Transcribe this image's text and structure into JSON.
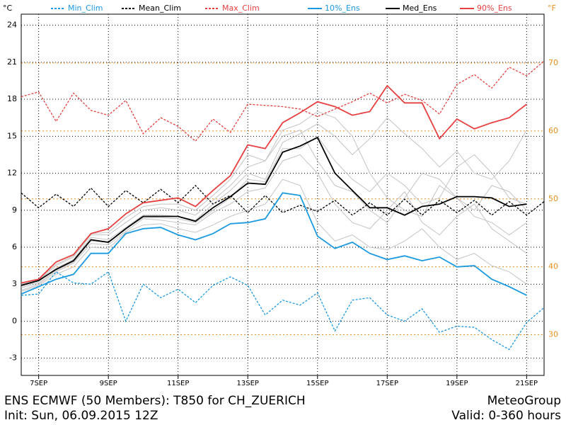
{
  "chart_data": {
    "type": "line",
    "left_unit": "°C",
    "right_unit": "°F",
    "x": [
      0,
      12,
      24,
      36,
      48,
      60,
      72,
      84,
      96,
      108,
      120,
      132,
      144,
      156,
      168,
      180,
      192,
      204,
      216,
      228,
      240,
      252,
      264,
      276,
      288,
      300,
      312,
      324,
      336,
      348,
      360
    ],
    "xlim": [
      0,
      360
    ],
    "xticks": [
      {
        "value": 12,
        "label": "7SEP"
      },
      {
        "value": 60,
        "label": "9SEP"
      },
      {
        "value": 108,
        "label": "11SEP"
      },
      {
        "value": 156,
        "label": "13SEP"
      },
      {
        "value": 204,
        "label": "15SEP"
      },
      {
        "value": 252,
        "label": "17SEP"
      },
      {
        "value": 300,
        "label": "19SEP"
      },
      {
        "value": 348,
        "label": "21SEP"
      }
    ],
    "ylim": [
      -4.4,
      24.9
    ],
    "yticks": [
      -3,
      0,
      3,
      6,
      9,
      12,
      15,
      18,
      21,
      24
    ],
    "y2lim": [
      24,
      77.2
    ],
    "y2ticks": [
      30,
      40,
      50,
      60,
      70
    ],
    "y2color": "#e8901c",
    "grid": true,
    "member_color": "#c4c4c4",
    "members": [
      {
        "values": [
          2.8,
          3.2,
          4.3,
          5.0,
          6.8,
          6.6,
          7.6,
          8.6,
          8.6,
          8.5,
          8.2,
          9.5,
          10.6,
          12.0,
          11.5,
          14.5,
          15.2,
          16.0,
          15.0,
          13.5,
          14.8,
          16.5,
          15.2,
          14.0,
          12.5,
          13.8,
          12.0,
          11.5,
          13.0,
          15.5,
          null
        ]
      },
      {
        "values": [
          2.5,
          3.0,
          4.0,
          4.7,
          6.3,
          6.2,
          7.3,
          8.3,
          8.2,
          8.0,
          7.8,
          8.8,
          9.5,
          10.5,
          10.8,
          13.0,
          13.5,
          12.0,
          9.5,
          8.0,
          7.5,
          9.0,
          10.5,
          8.0,
          7.0,
          8.5,
          9.5,
          7.5,
          6.5,
          5.5,
          null
        ]
      },
      {
        "values": [
          3.0,
          3.3,
          4.5,
          5.2,
          7.0,
          7.0,
          8.0,
          9.0,
          9.2,
          9.0,
          8.6,
          9.8,
          11.0,
          12.5,
          13.0,
          15.0,
          15.5,
          13.0,
          11.0,
          10.5,
          9.0,
          8.0,
          10.0,
          12.0,
          11.5,
          10.0,
          9.0,
          11.0,
          10.5,
          9.0,
          null
        ]
      },
      {
        "values": [
          2.4,
          2.9,
          3.8,
          4.4,
          6.0,
          5.9,
          7.2,
          7.8,
          7.9,
          7.5,
          7.2,
          7.8,
          8.5,
          9.0,
          9.5,
          11.5,
          11.0,
          8.0,
          6.5,
          7.0,
          6.0,
          5.8,
          6.5,
          7.5,
          6.0,
          5.0,
          5.5,
          4.5,
          4.0,
          3.0,
          null
        ]
      },
      {
        "values": [
          2.7,
          3.1,
          4.1,
          4.8,
          6.5,
          6.4,
          7.5,
          8.4,
          8.4,
          8.3,
          8.0,
          9.0,
          10.0,
          11.5,
          11.3,
          14.0,
          14.0,
          15.0,
          13.0,
          11.5,
          10.5,
          12.0,
          11.0,
          9.5,
          10.0,
          12.5,
          13.5,
          12.0,
          10.0,
          9.5,
          null
        ]
      },
      {
        "values": [
          2.9,
          3.4,
          4.6,
          5.3,
          7.1,
          7.2,
          8.4,
          9.3,
          9.5,
          9.5,
          9.0,
          10.2,
          11.5,
          13.5,
          13.0,
          15.5,
          16.0,
          17.0,
          16.5,
          15.0,
          12.0,
          10.0,
          9.0,
          8.5,
          11.0,
          10.0,
          8.5,
          8.0,
          7.0,
          8.0,
          null
        ]
      }
    ],
    "series": [
      {
        "name": "Min_Clim",
        "color": "#1a9ae0",
        "dashed": true,
        "values": [
          2.1,
          2.2,
          4.0,
          3.1,
          3.0,
          4.0,
          0.0,
          3.0,
          1.9,
          2.6,
          1.5,
          2.9,
          3.6,
          2.9,
          0.5,
          1.7,
          1.3,
          2.3,
          -0.8,
          1.7,
          1.9,
          0.5,
          0.0,
          1.0,
          -0.9,
          -0.4,
          -0.5,
          -1.5,
          -2.3,
          -0.1,
          1.1
        ]
      },
      {
        "name": "Mean_Clim",
        "color": "#000000",
        "dashed": true,
        "values": [
          10.4,
          9.2,
          10.3,
          9.3,
          10.8,
          9.3,
          10.6,
          9.6,
          10.7,
          9.6,
          11.0,
          9.5,
          10.2,
          8.8,
          10.2,
          8.8,
          9.4,
          8.9,
          9.8,
          8.6,
          9.6,
          8.6,
          9.9,
          8.6,
          9.8,
          8.8,
          9.8,
          8.6,
          9.7,
          8.6,
          9.7
        ]
      },
      {
        "name": "Max_Clim",
        "color": "#e84040",
        "dashed": true,
        "values": [
          18.2,
          18.6,
          16.2,
          18.5,
          17.1,
          16.7,
          17.9,
          15.2,
          16.5,
          15.8,
          14.6,
          16.4,
          15.3,
          17.6,
          17.5,
          17.4,
          17.2,
          16.6,
          17.2,
          17.8,
          18.5,
          17.7,
          18.4,
          17.9,
          16.8,
          19.2,
          20.0,
          18.9,
          20.6,
          19.9,
          21.1
        ]
      },
      {
        "name": "10%_Ens",
        "color": "#1a9ae0",
        "dashed": false,
        "values": [
          2.2,
          2.8,
          3.4,
          3.8,
          5.5,
          5.5,
          7.1,
          7.5,
          7.6,
          7.0,
          6.6,
          7.1,
          7.9,
          8.0,
          8.3,
          10.4,
          10.2,
          6.9,
          5.9,
          6.4,
          5.5,
          5.0,
          5.3,
          4.9,
          5.2,
          4.4,
          4.5,
          3.4,
          2.8,
          2.1,
          null
        ]
      },
      {
        "name": "Med_Ens",
        "color": "#000000",
        "dashed": false,
        "values": [
          2.9,
          3.3,
          4.2,
          4.9,
          6.6,
          6.4,
          7.5,
          8.5,
          8.5,
          8.5,
          8.1,
          9.2,
          10.1,
          11.2,
          11.1,
          13.7,
          14.2,
          14.9,
          12.0,
          10.6,
          9.2,
          9.2,
          8.6,
          9.3,
          9.5,
          10.1,
          10.1,
          10.0,
          9.3,
          9.5,
          null
        ]
      },
      {
        "name": "90%_Ens",
        "color": "#e84040",
        "dashed": false,
        "values": [
          3.1,
          3.4,
          4.8,
          5.4,
          7.1,
          7.5,
          8.7,
          9.6,
          9.8,
          10.0,
          9.3,
          10.6,
          11.8,
          14.3,
          14.0,
          16.1,
          16.9,
          17.8,
          17.4,
          16.7,
          17.0,
          19.1,
          17.7,
          17.7,
          14.8,
          16.4,
          15.6,
          16.1,
          16.5,
          17.6,
          null
        ]
      }
    ],
    "footer": {
      "title": "ENS ECMWF (50 Members): T850 for CH_ZUERICH",
      "init": "Init: Sun, 06.09.2015 12Z",
      "brand": "MeteoGroup",
      "valid": "Valid: 0-360 hours"
    }
  }
}
